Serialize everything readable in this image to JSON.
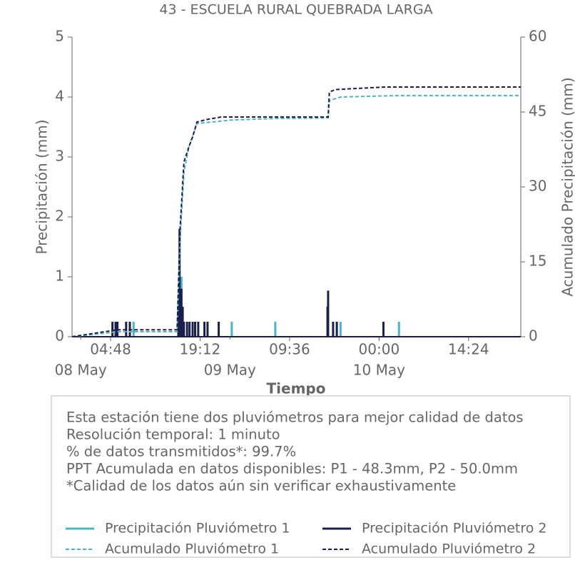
{
  "chart_data": {
    "type": "line",
    "title": "43 - ESCUELA RURAL QUEBRADA LARGA",
    "xlabel": "Tiempo",
    "ylabel": "Precipitación (mm)",
    "y2label": "Acumulado Precipitación (mm)",
    "xlim": [
      -1.4,
      70.8
    ],
    "xticks": [
      {
        "value": 4.8,
        "label": "04:48"
      },
      {
        "value": 19.2,
        "label": "19:12"
      },
      {
        "value": 33.6,
        "label": "09:36"
      },
      {
        "value": 48,
        "label": "00:00"
      },
      {
        "value": 62.4,
        "label": "14:24"
      }
    ],
    "xdateticks": [
      {
        "value": 0,
        "label": "08 May"
      },
      {
        "value": 24,
        "label": "09 May"
      },
      {
        "value": 48,
        "label": "10 May"
      }
    ],
    "ylim": [
      0,
      5
    ],
    "yticks": [
      0,
      1,
      2,
      3,
      4,
      5
    ],
    "y2lim": [
      0,
      60
    ],
    "y2ticks": [
      0,
      15,
      30,
      45,
      60
    ],
    "series": [
      {
        "name": "Precipitación Pluviómetro 1",
        "color": "#4bb3c1",
        "style": "spike",
        "x": [
          -1.4,
          8.5,
          15.8,
          16.2,
          16.4,
          24.3,
          31.3,
          41.8,
          51.2,
          70.8
        ],
        "values": [
          0,
          0.25,
          0.75,
          1.0,
          0.5,
          0.25,
          0.25,
          0.25,
          0.25,
          0
        ]
      },
      {
        "name": "Precipitación Pluviómetro 2",
        "color": "#1b1f4b",
        "style": "spike",
        "x": [
          -1.4,
          5.1,
          5.6,
          5.9,
          7.3,
          7.9,
          15.7,
          15.9,
          16.2,
          16.4,
          16.6,
          17.1,
          17.5,
          18.0,
          18.4,
          18.9,
          19.9,
          20.4,
          22.2,
          39.7,
          39.8,
          40.6,
          41.2,
          48.7,
          70.8
        ],
        "values": [
          0,
          0.25,
          0.25,
          0.25,
          0.25,
          0.25,
          0.5,
          1.8,
          0.8,
          0.5,
          0.25,
          0.25,
          0.25,
          0.25,
          0.25,
          0.25,
          0.25,
          0.25,
          0.25,
          0.5,
          0.77,
          0.25,
          0.25,
          0.25,
          0
        ]
      },
      {
        "name": "Acumulado Pluviómetro 1",
        "color": "#4bb3c1",
        "style": "dashed",
        "axis": "y2",
        "x": [
          -1.4,
          5.9,
          15.5,
          16.0,
          16.6,
          17.4,
          18.7,
          24.3,
          31.3,
          39.8,
          40.0,
          41.8,
          51.2,
          70.8
        ],
        "values": [
          0,
          1.0,
          1.0,
          20,
          33,
          38,
          42.7,
          43.4,
          43.7,
          43.8,
          47.3,
          48.0,
          48.3,
          48.3
        ]
      },
      {
        "name": "Acumulado Pluviómetro 2",
        "color": "#1b1f4b",
        "style": "dashed",
        "axis": "y2",
        "x": [
          -1.4,
          5.9,
          15.5,
          16.0,
          16.6,
          17.4,
          18.0,
          18.7,
          20.3,
          22.6,
          39.8,
          40.0,
          41.0,
          49.0,
          70.8
        ],
        "values": [
          0,
          1.4,
          1.4,
          22,
          35,
          38,
          40,
          43,
          43.5,
          44,
          44,
          49,
          49.5,
          50,
          50
        ]
      }
    ],
    "notes": [
      "Esta estación tiene dos pluviómetros para mejor calidad de datos",
      "Resolución temporal: 1 minuto",
      "% de datos transmitidos*: 99.7%",
      "PPT Acumulada en datos disponibles: P1 - 48.3mm, P2 - 50.0mm",
      "*Calidad de los datos aún sin verificar exhaustivamente"
    ],
    "legend": "bottom"
  }
}
